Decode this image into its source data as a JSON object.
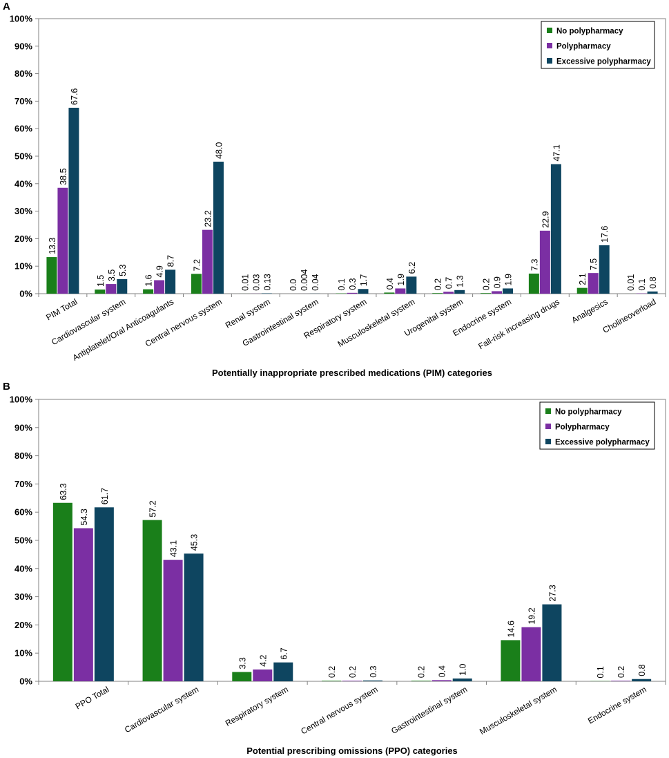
{
  "colors": {
    "no_poly": "#1a7f1a",
    "poly": "#7b2fa3",
    "excessive": "#0e4560",
    "axis": "#808080"
  },
  "chart_data": [
    {
      "panel": "A",
      "type": "bar",
      "title": "",
      "xlabel": "Potentially inappropriate prescribed medications (PIM) categories",
      "ylabel": "",
      "ylim": [
        0,
        100
      ],
      "ytick_labels": [
        "0%",
        "10%",
        "20%",
        "30%",
        "40%",
        "50%",
        "60%",
        "70%",
        "80%",
        "90%",
        "100%"
      ],
      "legend_position": "top-right",
      "categories": [
        "PIM Total",
        "Cardiovascular system",
        "Antiplatelet/Oral Anticoagulants",
        "Central nervous system",
        "Renal system",
        "Gastrointestinal system",
        "Respiratory system",
        "Musculoskeletal system",
        "Urogenital system",
        "Endocrine system",
        "Fall-risk increasing drugs",
        "Analgesics",
        "Cholineoverload"
      ],
      "series": [
        {
          "name": "No polypharmacy",
          "values": [
            13.3,
            1.5,
            1.6,
            7.2,
            0.01,
            0.0,
            0.1,
            0.4,
            0.2,
            0.2,
            7.3,
            2.1,
            0.01
          ],
          "labels": [
            "13.3",
            "1.5",
            "1.6",
            "7.2",
            "0.01",
            "0.0",
            "0.1",
            "0.4",
            "0.2",
            "0.2",
            "7.3",
            "2.1",
            "0.01"
          ]
        },
        {
          "name": "Polypharmacy",
          "values": [
            38.5,
            3.5,
            4.9,
            23.2,
            0.03,
            0.004,
            0.3,
            1.9,
            0.7,
            0.9,
            22.9,
            7.5,
            0.1
          ],
          "labels": [
            "38.5",
            "3.5",
            "4.9",
            "23.2",
            "0.03",
            "0.004",
            "0.3",
            "1.9",
            "0.7",
            "0.9",
            "22.9",
            "7.5",
            "0.1"
          ]
        },
        {
          "name": "Excessive polypharmacy",
          "values": [
            67.6,
            5.3,
            8.7,
            48.0,
            0.13,
            0.04,
            1.7,
            6.2,
            1.3,
            1.9,
            47.1,
            17.6,
            0.8
          ],
          "labels": [
            "67.6",
            "5.3",
            "8.7",
            "48.0",
            "0.13",
            "0.04",
            "1.7",
            "6.2",
            "1.3",
            "1.9",
            "47.1",
            "17.6",
            "0.8"
          ]
        }
      ]
    },
    {
      "panel": "B",
      "type": "bar",
      "title": "",
      "xlabel": "Potential prescribing omissions (PPO) categories",
      "ylabel": "",
      "ylim": [
        0,
        100
      ],
      "ytick_labels": [
        "0%",
        "10%",
        "20%",
        "30%",
        "40%",
        "50%",
        "60%",
        "70%",
        "80%",
        "90%",
        "100%"
      ],
      "legend_position": "top-right",
      "categories": [
        "PPO Total",
        "Cardiovascular system",
        "Respiratory system",
        "Central nervous system",
        "Gastrointestinal system",
        "Musculoskeletal system",
        "Endocrine system"
      ],
      "series": [
        {
          "name": "No polypharmacy",
          "values": [
            63.3,
            57.2,
            3.3,
            0.2,
            0.2,
            14.6,
            0.1
          ],
          "labels": [
            "63.3",
            "57.2",
            "3.3",
            "0.2",
            "0.2",
            "14.6",
            "0.1"
          ]
        },
        {
          "name": "Polypharmacy",
          "values": [
            54.3,
            43.1,
            4.2,
            0.2,
            0.4,
            19.2,
            0.2
          ],
          "labels": [
            "54.3",
            "43.1",
            "4.2",
            "0.2",
            "0.4",
            "19.2",
            "0.2"
          ]
        },
        {
          "name": "Excessive polypharmacy",
          "values": [
            61.7,
            45.3,
            6.7,
            0.3,
            1.0,
            27.3,
            0.8
          ],
          "labels": [
            "61.7",
            "45.3",
            "6.7",
            "0.3",
            "1.0",
            "27.3",
            "0.8"
          ]
        }
      ]
    }
  ]
}
